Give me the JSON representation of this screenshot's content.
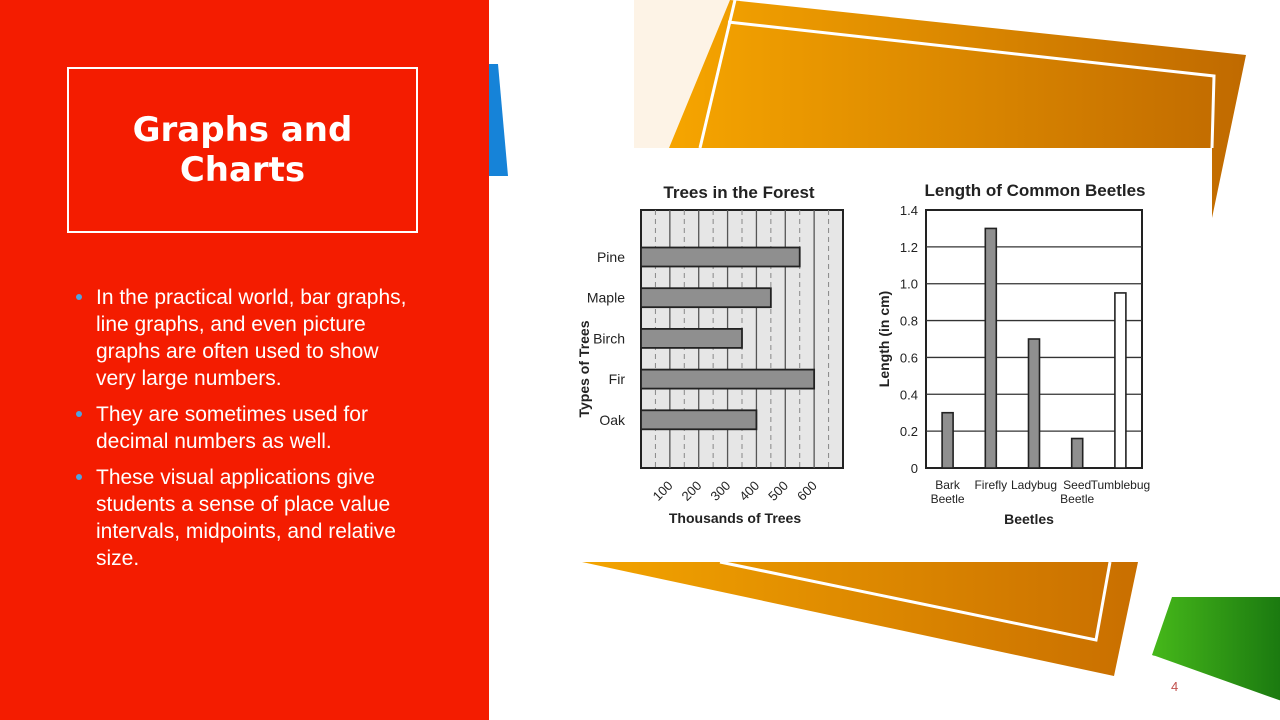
{
  "slide": {
    "title": "Graphs and Charts",
    "title_line1": "Graphs and",
    "title_line2": "Charts",
    "page_number": "4",
    "colors": {
      "left_panel": "#f41c00",
      "accent_orange": "#e8a000",
      "accent_green": "#3aa81a",
      "accent_blue": "#1683d8"
    }
  },
  "bullets": [
    "In the practical world, bar graphs, line graphs, and even picture graphs are often used to show very large numbers.",
    "They are sometimes used for decimal numbers as well.",
    "These visual applications give students a sense of place value intervals, midpoints, and relative size."
  ],
  "chart_data": [
    {
      "type": "bar",
      "orientation": "horizontal",
      "title": "Trees in the Forest",
      "xlabel": "Thousands of Trees",
      "ylabel": "Types of Trees",
      "categories": [
        "Pine",
        "Maple",
        "Birch",
        "Fir",
        "Oak"
      ],
      "values": [
        550,
        450,
        350,
        600,
        400
      ],
      "xlim": [
        0,
        700
      ],
      "xticks": [
        "100",
        "200",
        "300",
        "400",
        "500",
        "600"
      ],
      "grid": true
    },
    {
      "type": "bar",
      "title": "Length of Common Beetles",
      "xlabel": "Beetles",
      "ylabel": "Length (in cm)",
      "categories": [
        "Bark Beetle",
        "Firefly",
        "Ladybug",
        "Seed Beetle",
        "Tumblebug"
      ],
      "values": [
        0.3,
        1.3,
        0.7,
        0.16,
        0.95
      ],
      "ylim": [
        0,
        1.4
      ],
      "yticks": [
        "0",
        "0.2",
        "0.4",
        "0.6",
        "0.8",
        "1.0",
        "1.2",
        "1.4"
      ],
      "grid": true
    }
  ]
}
